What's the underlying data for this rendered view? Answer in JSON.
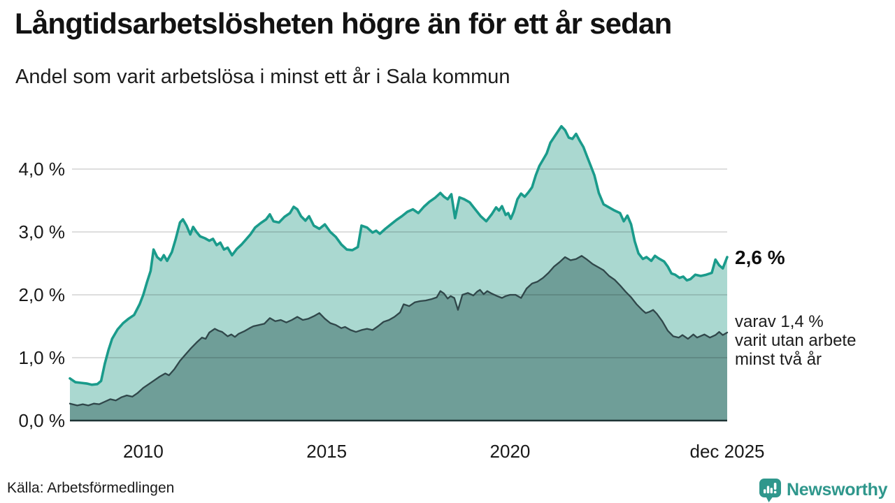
{
  "source": {
    "label": "Källa: Arbetsförmedlingen"
  },
  "branding": {
    "name": "Newsworthy",
    "color": "#2f978c",
    "icon": "newsworthy-chart-bubble-icon"
  },
  "colors": {
    "accent_teal_line": "#1a9b8b",
    "light_area_fill": "#aad8d0",
    "dark_area_fill": "#6f9e98",
    "dark_area_line": "#30474a",
    "gridline": "rgba(0,0,0,0.13)",
    "axis_baseline": "#1e3435",
    "brand_teal": "#2f978c",
    "text": "#141414"
  },
  "chart_data": {
    "type": "area",
    "title": "Långtidsarbetslösheten högre än för ett år sedan",
    "subtitle": "Andel som varit arbetslösa i minst ett år i Sala kommun",
    "x_unit": "year (decimal, monthly series)",
    "x_range": [
      2008.0,
      2025.92
    ],
    "ylim": [
      0,
      4.86
    ],
    "grid": "horizontal",
    "legend_position": "right-edge-annotations",
    "y_ticks": [
      {
        "label": "0,0 %",
        "value": 0
      },
      {
        "label": "1,0 %",
        "value": 1
      },
      {
        "label": "2,0 %",
        "value": 2
      },
      {
        "label": "3,0 %",
        "value": 3
      },
      {
        "label": "4,0 %",
        "value": 4
      }
    ],
    "x_ticks": [
      {
        "label": "2010",
        "year": 2010
      },
      {
        "label": "2015",
        "year": 2015
      },
      {
        "label": "2020",
        "year": 2020
      },
      {
        "label": "dec 2025",
        "year": 2025.92
      }
    ],
    "series": [
      {
        "id": "unemployed-at-least-one-year",
        "name": "Andel arbetslösa i minst ett år",
        "end_label": "2,6 %",
        "end_value": 2.6,
        "line_color": "#1a9b8b",
        "fill_color": "#aad8d0",
        "line_width": 3.6,
        "points": [
          [
            2008.0,
            0.67
          ],
          [
            2008.15,
            0.61
          ],
          [
            2008.3,
            0.6
          ],
          [
            2008.45,
            0.59
          ],
          [
            2008.6,
            0.57
          ],
          [
            2008.75,
            0.58
          ],
          [
            2008.85,
            0.63
          ],
          [
            2008.95,
            0.9
          ],
          [
            2009.05,
            1.12
          ],
          [
            2009.15,
            1.3
          ],
          [
            2009.3,
            1.45
          ],
          [
            2009.45,
            1.55
          ],
          [
            2009.6,
            1.62
          ],
          [
            2009.75,
            1.68
          ],
          [
            2009.9,
            1.85
          ],
          [
            2010.0,
            2.0
          ],
          [
            2010.1,
            2.2
          ],
          [
            2010.2,
            2.38
          ],
          [
            2010.28,
            2.72
          ],
          [
            2010.38,
            2.6
          ],
          [
            2010.48,
            2.55
          ],
          [
            2010.56,
            2.63
          ],
          [
            2010.65,
            2.54
          ],
          [
            2010.78,
            2.68
          ],
          [
            2010.88,
            2.88
          ],
          [
            2011.0,
            3.15
          ],
          [
            2011.08,
            3.2
          ],
          [
            2011.18,
            3.1
          ],
          [
            2011.28,
            2.96
          ],
          [
            2011.36,
            3.08
          ],
          [
            2011.45,
            3.0
          ],
          [
            2011.55,
            2.93
          ],
          [
            2011.68,
            2.9
          ],
          [
            2011.8,
            2.86
          ],
          [
            2011.9,
            2.89
          ],
          [
            2012.0,
            2.79
          ],
          [
            2012.1,
            2.83
          ],
          [
            2012.2,
            2.72
          ],
          [
            2012.3,
            2.75
          ],
          [
            2012.42,
            2.63
          ],
          [
            2012.55,
            2.73
          ],
          [
            2012.68,
            2.8
          ],
          [
            2012.8,
            2.88
          ],
          [
            2012.92,
            2.96
          ],
          [
            2013.05,
            3.07
          ],
          [
            2013.2,
            3.14
          ],
          [
            2013.35,
            3.2
          ],
          [
            2013.45,
            3.28
          ],
          [
            2013.55,
            3.17
          ],
          [
            2013.7,
            3.15
          ],
          [
            2013.85,
            3.24
          ],
          [
            2014.0,
            3.3
          ],
          [
            2014.1,
            3.4
          ],
          [
            2014.2,
            3.36
          ],
          [
            2014.3,
            3.25
          ],
          [
            2014.42,
            3.18
          ],
          [
            2014.52,
            3.25
          ],
          [
            2014.65,
            3.1
          ],
          [
            2014.8,
            3.05
          ],
          [
            2014.95,
            3.12
          ],
          [
            2015.1,
            3.0
          ],
          [
            2015.25,
            2.92
          ],
          [
            2015.4,
            2.8
          ],
          [
            2015.55,
            2.72
          ],
          [
            2015.7,
            2.71
          ],
          [
            2015.85,
            2.76
          ],
          [
            2015.95,
            3.1
          ],
          [
            2016.1,
            3.07
          ],
          [
            2016.25,
            2.99
          ],
          [
            2016.35,
            3.02
          ],
          [
            2016.45,
            2.97
          ],
          [
            2016.6,
            3.05
          ],
          [
            2016.75,
            3.12
          ],
          [
            2016.9,
            3.19
          ],
          [
            2017.05,
            3.25
          ],
          [
            2017.2,
            3.32
          ],
          [
            2017.35,
            3.36
          ],
          [
            2017.5,
            3.3
          ],
          [
            2017.65,
            3.4
          ],
          [
            2017.8,
            3.48
          ],
          [
            2017.95,
            3.54
          ],
          [
            2018.1,
            3.62
          ],
          [
            2018.2,
            3.56
          ],
          [
            2018.3,
            3.52
          ],
          [
            2018.4,
            3.6
          ],
          [
            2018.5,
            3.22
          ],
          [
            2018.62,
            3.55
          ],
          [
            2018.75,
            3.52
          ],
          [
            2018.9,
            3.47
          ],
          [
            2019.05,
            3.36
          ],
          [
            2019.2,
            3.25
          ],
          [
            2019.35,
            3.17
          ],
          [
            2019.5,
            3.28
          ],
          [
            2019.62,
            3.39
          ],
          [
            2019.7,
            3.34
          ],
          [
            2019.78,
            3.41
          ],
          [
            2019.88,
            3.27
          ],
          [
            2019.95,
            3.3
          ],
          [
            2020.02,
            3.21
          ],
          [
            2020.1,
            3.32
          ],
          [
            2020.2,
            3.52
          ],
          [
            2020.3,
            3.61
          ],
          [
            2020.4,
            3.56
          ],
          [
            2020.5,
            3.63
          ],
          [
            2020.6,
            3.71
          ],
          [
            2020.7,
            3.9
          ],
          [
            2020.8,
            4.05
          ],
          [
            2020.9,
            4.15
          ],
          [
            2021.0,
            4.25
          ],
          [
            2021.1,
            4.42
          ],
          [
            2021.25,
            4.55
          ],
          [
            2021.4,
            4.68
          ],
          [
            2021.5,
            4.62
          ],
          [
            2021.6,
            4.5
          ],
          [
            2021.7,
            4.48
          ],
          [
            2021.8,
            4.56
          ],
          [
            2021.9,
            4.45
          ],
          [
            2022.0,
            4.35
          ],
          [
            2022.1,
            4.2
          ],
          [
            2022.2,
            4.05
          ],
          [
            2022.3,
            3.9
          ],
          [
            2022.42,
            3.62
          ],
          [
            2022.55,
            3.44
          ],
          [
            2022.7,
            3.39
          ],
          [
            2022.85,
            3.34
          ],
          [
            2023.0,
            3.3
          ],
          [
            2023.1,
            3.17
          ],
          [
            2023.2,
            3.26
          ],
          [
            2023.3,
            3.12
          ],
          [
            2023.4,
            2.85
          ],
          [
            2023.5,
            2.66
          ],
          [
            2023.62,
            2.57
          ],
          [
            2023.72,
            2.6
          ],
          [
            2023.85,
            2.54
          ],
          [
            2023.95,
            2.62
          ],
          [
            2024.05,
            2.58
          ],
          [
            2024.2,
            2.53
          ],
          [
            2024.3,
            2.45
          ],
          [
            2024.4,
            2.34
          ],
          [
            2024.5,
            2.32
          ],
          [
            2024.62,
            2.27
          ],
          [
            2024.72,
            2.29
          ],
          [
            2024.82,
            2.23
          ],
          [
            2024.92,
            2.25
          ],
          [
            2025.05,
            2.32
          ],
          [
            2025.2,
            2.3
          ],
          [
            2025.35,
            2.32
          ],
          [
            2025.5,
            2.35
          ],
          [
            2025.6,
            2.56
          ],
          [
            2025.7,
            2.47
          ],
          [
            2025.8,
            2.42
          ],
          [
            2025.92,
            2.6
          ]
        ]
      },
      {
        "id": "unemployed-at-least-two-years",
        "name": "varav utan arbete minst två år",
        "end_label_lines": [
          "varav 1,4 %",
          "varit utan arbete",
          "minst två år"
        ],
        "end_value": 1.4,
        "line_color": "#30474a",
        "fill_color": "#6f9e98",
        "line_width": 2.3,
        "points": [
          [
            2008.0,
            0.27
          ],
          [
            2008.2,
            0.24
          ],
          [
            2008.35,
            0.26
          ],
          [
            2008.5,
            0.24
          ],
          [
            2008.65,
            0.27
          ],
          [
            2008.8,
            0.26
          ],
          [
            2008.95,
            0.3
          ],
          [
            2009.1,
            0.34
          ],
          [
            2009.25,
            0.32
          ],
          [
            2009.4,
            0.37
          ],
          [
            2009.55,
            0.4
          ],
          [
            2009.7,
            0.38
          ],
          [
            2009.85,
            0.44
          ],
          [
            2010.0,
            0.52
          ],
          [
            2010.15,
            0.58
          ],
          [
            2010.3,
            0.64
          ],
          [
            2010.45,
            0.7
          ],
          [
            2010.6,
            0.75
          ],
          [
            2010.7,
            0.72
          ],
          [
            2010.85,
            0.82
          ],
          [
            2011.0,
            0.95
          ],
          [
            2011.15,
            1.05
          ],
          [
            2011.3,
            1.15
          ],
          [
            2011.45,
            1.24
          ],
          [
            2011.6,
            1.32
          ],
          [
            2011.7,
            1.3
          ],
          [
            2011.8,
            1.4
          ],
          [
            2011.95,
            1.46
          ],
          [
            2012.05,
            1.43
          ],
          [
            2012.15,
            1.41
          ],
          [
            2012.3,
            1.34
          ],
          [
            2012.4,
            1.37
          ],
          [
            2012.5,
            1.33
          ],
          [
            2012.6,
            1.38
          ],
          [
            2012.75,
            1.42
          ],
          [
            2012.9,
            1.47
          ],
          [
            2013.0,
            1.5
          ],
          [
            2013.15,
            1.52
          ],
          [
            2013.3,
            1.54
          ],
          [
            2013.45,
            1.63
          ],
          [
            2013.6,
            1.58
          ],
          [
            2013.75,
            1.6
          ],
          [
            2013.9,
            1.56
          ],
          [
            2014.05,
            1.6
          ],
          [
            2014.2,
            1.65
          ],
          [
            2014.35,
            1.6
          ],
          [
            2014.5,
            1.62
          ],
          [
            2014.65,
            1.66
          ],
          [
            2014.8,
            1.71
          ],
          [
            2014.95,
            1.62
          ],
          [
            2015.1,
            1.55
          ],
          [
            2015.25,
            1.52
          ],
          [
            2015.4,
            1.47
          ],
          [
            2015.5,
            1.49
          ],
          [
            2015.65,
            1.44
          ],
          [
            2015.8,
            1.41
          ],
          [
            2015.95,
            1.44
          ],
          [
            2016.1,
            1.46
          ],
          [
            2016.25,
            1.44
          ],
          [
            2016.4,
            1.5
          ],
          [
            2016.55,
            1.57
          ],
          [
            2016.7,
            1.6
          ],
          [
            2016.85,
            1.65
          ],
          [
            2017.0,
            1.72
          ],
          [
            2017.1,
            1.85
          ],
          [
            2017.25,
            1.82
          ],
          [
            2017.4,
            1.88
          ],
          [
            2017.55,
            1.9
          ],
          [
            2017.7,
            1.91
          ],
          [
            2017.85,
            1.93
          ],
          [
            2018.0,
            1.96
          ],
          [
            2018.1,
            2.06
          ],
          [
            2018.2,
            2.02
          ],
          [
            2018.3,
            1.94
          ],
          [
            2018.38,
            1.98
          ],
          [
            2018.48,
            1.95
          ],
          [
            2018.58,
            1.76
          ],
          [
            2018.7,
            2.0
          ],
          [
            2018.85,
            2.03
          ],
          [
            2019.0,
            1.99
          ],
          [
            2019.1,
            2.05
          ],
          [
            2019.18,
            2.08
          ],
          [
            2019.28,
            2.01
          ],
          [
            2019.38,
            2.06
          ],
          [
            2019.5,
            2.02
          ],
          [
            2019.65,
            1.98
          ],
          [
            2019.78,
            1.95
          ],
          [
            2019.88,
            1.98
          ],
          [
            2020.0,
            2.0
          ],
          [
            2020.15,
            2.0
          ],
          [
            2020.3,
            1.95
          ],
          [
            2020.45,
            2.1
          ],
          [
            2020.6,
            2.18
          ],
          [
            2020.75,
            2.21
          ],
          [
            2020.9,
            2.27
          ],
          [
            2021.05,
            2.35
          ],
          [
            2021.2,
            2.45
          ],
          [
            2021.35,
            2.52
          ],
          [
            2021.5,
            2.6
          ],
          [
            2021.65,
            2.55
          ],
          [
            2021.8,
            2.57
          ],
          [
            2021.95,
            2.62
          ],
          [
            2022.1,
            2.56
          ],
          [
            2022.25,
            2.49
          ],
          [
            2022.4,
            2.44
          ],
          [
            2022.55,
            2.39
          ],
          [
            2022.7,
            2.3
          ],
          [
            2022.85,
            2.24
          ],
          [
            2023.0,
            2.15
          ],
          [
            2023.15,
            2.05
          ],
          [
            2023.3,
            1.96
          ],
          [
            2023.45,
            1.85
          ],
          [
            2023.6,
            1.76
          ],
          [
            2023.7,
            1.71
          ],
          [
            2023.8,
            1.73
          ],
          [
            2023.9,
            1.76
          ],
          [
            2024.0,
            1.7
          ],
          [
            2024.15,
            1.58
          ],
          [
            2024.3,
            1.43
          ],
          [
            2024.45,
            1.34
          ],
          [
            2024.6,
            1.32
          ],
          [
            2024.7,
            1.36
          ],
          [
            2024.85,
            1.3
          ],
          [
            2025.0,
            1.37
          ],
          [
            2025.1,
            1.32
          ],
          [
            2025.3,
            1.37
          ],
          [
            2025.45,
            1.32
          ],
          [
            2025.6,
            1.36
          ],
          [
            2025.7,
            1.41
          ],
          [
            2025.8,
            1.36
          ],
          [
            2025.92,
            1.4
          ]
        ]
      }
    ]
  }
}
